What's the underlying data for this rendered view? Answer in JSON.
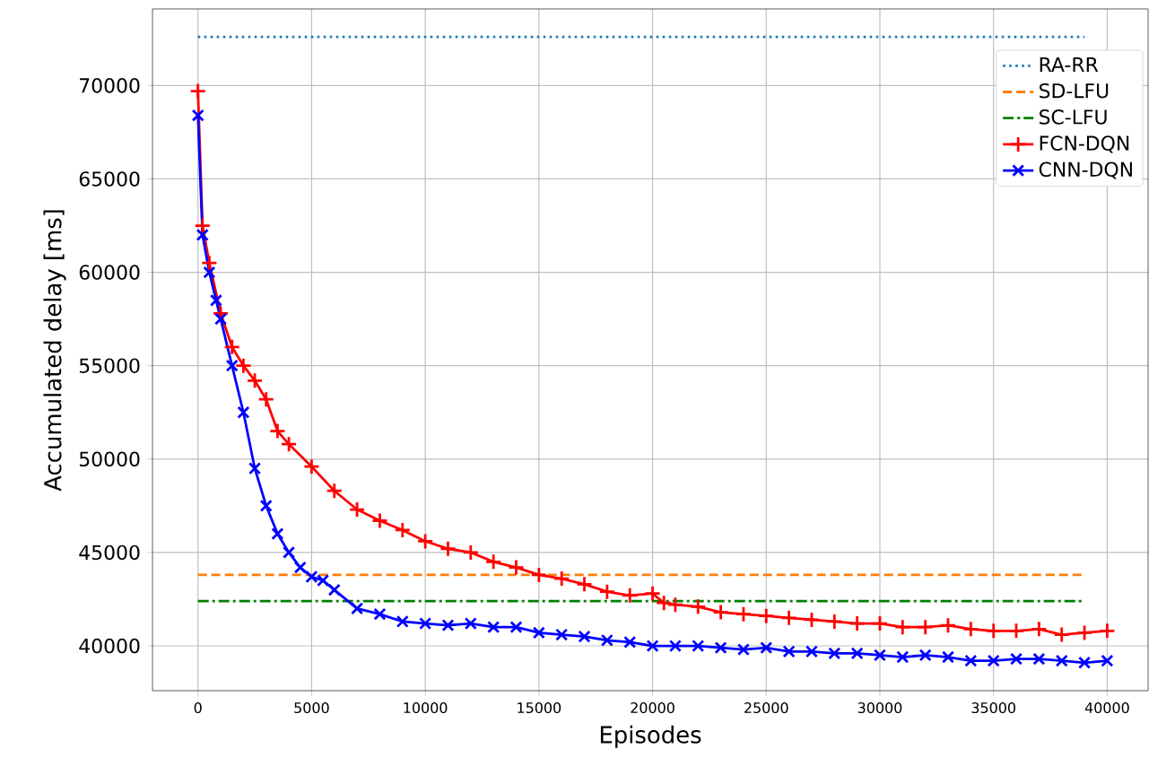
{
  "chart_data": {
    "type": "line",
    "xlabel": "Episodes",
    "ylabel": "Accumulated delay [ms]",
    "xlim": [
      -2000,
      41800
    ],
    "ylim": [
      37600,
      74100
    ],
    "xticks": [
      0,
      5000,
      10000,
      15000,
      20000,
      25000,
      30000,
      35000,
      40000
    ],
    "yticks": [
      40000,
      45000,
      50000,
      55000,
      60000,
      65000,
      70000
    ],
    "grid": true,
    "legend": "top right",
    "series": [
      {
        "name": "RA-RR",
        "color": "#1f77b4",
        "line_style": "dotted",
        "marker": "none",
        "x": [
          0,
          39000
        ],
        "values": [
          72600,
          72600
        ]
      },
      {
        "name": "SD-LFU",
        "color": "#ff7f0e",
        "line_style": "dashed",
        "marker": "none",
        "x": [
          0,
          39000
        ],
        "values": [
          43800,
          43800
        ]
      },
      {
        "name": "SC-LFU",
        "color": "#008000",
        "line_style": "dashdot",
        "marker": "none",
        "x": [
          0,
          39000
        ],
        "values": [
          42400,
          42400
        ]
      },
      {
        "name": "FCN-DQN",
        "color": "#ff0000",
        "line_style": "solid",
        "marker": "plus",
        "x": [
          0,
          200,
          500,
          1000,
          1500,
          2000,
          2500,
          3000,
          3500,
          4000,
          5000,
          6000,
          7000,
          8000,
          9000,
          10000,
          11000,
          12000,
          13000,
          14000,
          15000,
          16000,
          17000,
          18000,
          19000,
          20000,
          20500,
          21000,
          22000,
          23000,
          24000,
          25000,
          26000,
          27000,
          28000,
          29000,
          30000,
          31000,
          32000,
          33000,
          34000,
          35000,
          36000,
          37000,
          38000,
          39000,
          40000
        ],
        "values": [
          69700,
          62500,
          60500,
          57800,
          56000,
          55000,
          54200,
          53200,
          51500,
          50800,
          49600,
          48300,
          47300,
          46700,
          46200,
          45600,
          45200,
          45000,
          44500,
          44200,
          43800,
          43600,
          43300,
          42900,
          42700,
          42800,
          42300,
          42200,
          42100,
          41800,
          41700,
          41600,
          41500,
          41400,
          41300,
          41200,
          41200,
          41000,
          41000,
          41100,
          40900,
          40800,
          40800,
          40900,
          40600,
          40700,
          40800
        ]
      },
      {
        "name": "CNN-DQN",
        "color": "#0000ff",
        "line_style": "solid",
        "marker": "cross",
        "x": [
          0,
          200,
          500,
          800,
          1000,
          1500,
          2000,
          2500,
          3000,
          3500,
          4000,
          4500,
          5000,
          5500,
          6000,
          7000,
          8000,
          9000,
          10000,
          11000,
          12000,
          13000,
          14000,
          15000,
          16000,
          17000,
          18000,
          19000,
          20000,
          21000,
          22000,
          23000,
          24000,
          25000,
          26000,
          27000,
          28000,
          29000,
          30000,
          31000,
          32000,
          33000,
          34000,
          35000,
          36000,
          37000,
          38000,
          39000,
          40000
        ],
        "values": [
          68400,
          62000,
          60000,
          58500,
          57500,
          55000,
          52500,
          49500,
          47500,
          46000,
          45000,
          44200,
          43700,
          43500,
          43000,
          42000,
          41700,
          41300,
          41200,
          41100,
          41200,
          41000,
          41000,
          40700,
          40600,
          40500,
          40300,
          40200,
          40000,
          40000,
          40000,
          39900,
          39800,
          39900,
          39700,
          39700,
          39600,
          39600,
          39500,
          39400,
          39500,
          39400,
          39200,
          39200,
          39300,
          39300,
          39200,
          39100,
          39200
        ]
      }
    ]
  }
}
